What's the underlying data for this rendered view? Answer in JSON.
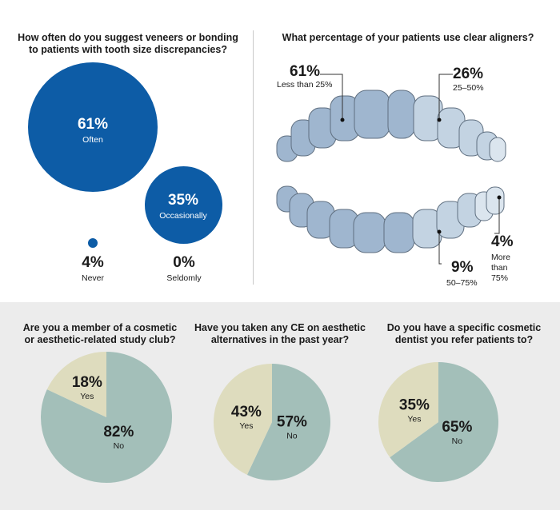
{
  "colors": {
    "bubble_blue": "#0d5ca6",
    "tooth_dark": "#9fb6cf",
    "tooth_light": "#c3d3e2",
    "tooth_lightest": "#dbe5ee",
    "pie_no": "#a3bfb9",
    "pie_yes": "#dedcbe",
    "band_bg": "#ececec"
  },
  "bubble_chart": {
    "title_line1": "How often do you suggest veneers or bonding",
    "title_line2": "to patients with tooth size discrepancies?"
  },
  "teeth_chart": {
    "title": "What percentage of your patients use clear aligners?"
  },
  "pies": [
    {
      "title_line1": "Are you a member of a cosmetic",
      "title_line2": "or aesthetic-related study club?"
    },
    {
      "title_line1": "Have you taken any CE on aesthetic",
      "title_line2": "alternatives in the past year?"
    },
    {
      "title_line1": "Do you have a specific cosmetic",
      "title_line2": "dentist you refer patients to?"
    }
  ],
  "chart_data": [
    {
      "type": "bubble",
      "title": "How often do you suggest veneers or bonding to patients with tooth size discrepancies?",
      "categories": [
        "Often",
        "Occasionally",
        "Never",
        "Seldomly"
      ],
      "values": [
        61,
        35,
        4,
        0
      ],
      "labels": [
        "61%",
        "35%",
        "4%",
        "0%"
      ],
      "unit": "%"
    },
    {
      "type": "pie",
      "title": "What percentage of your patients use clear aligners?",
      "categories": [
        "Less than 25%",
        "25–50%",
        "50–75%",
        "More than 75%"
      ],
      "values": [
        61,
        26,
        9,
        4
      ],
      "labels": [
        "61%",
        "26%",
        "9%",
        "4%"
      ],
      "unit": "%"
    },
    {
      "type": "pie",
      "title": "Are you a member of a cosmetic or aesthetic-related study club?",
      "categories": [
        "Yes",
        "No"
      ],
      "values": [
        18,
        82
      ],
      "labels": [
        "18%",
        "82%"
      ],
      "unit": "%"
    },
    {
      "type": "pie",
      "title": "Have you taken any CE on aesthetic alternatives in the past year?",
      "categories": [
        "Yes",
        "No"
      ],
      "values": [
        43,
        57
      ],
      "labels": [
        "43%",
        "57%"
      ],
      "unit": "%"
    },
    {
      "type": "pie",
      "title": "Do you have a specific cosmetic dentist you refer patients to?",
      "categories": [
        "Yes",
        "No"
      ],
      "values": [
        35,
        65
      ],
      "labels": [
        "35%",
        "65%"
      ],
      "unit": "%"
    }
  ]
}
